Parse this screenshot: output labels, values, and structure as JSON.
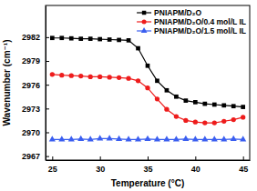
{
  "chart_data": {
    "type": "line",
    "x_label": "Temperature (°C)",
    "y_label": "Wavenumber (cm⁻¹)",
    "x": [
      25,
      26,
      27,
      28,
      29,
      30,
      31,
      32,
      33,
      34,
      35,
      36,
      37,
      38,
      39,
      40,
      41,
      42,
      43,
      44,
      45
    ],
    "series": [
      {
        "name": "PNIAPM/D₂O",
        "color": "#000000",
        "marker": "square",
        "values": [
          2981.9,
          2981.9,
          2981.85,
          2981.8,
          2981.8,
          2981.75,
          2981.7,
          2981.65,
          2981.6,
          2980.6,
          2978.4,
          2976.5,
          2975.3,
          2974.5,
          2974.0,
          2973.8,
          2973.6,
          2973.5,
          2973.4,
          2973.3,
          2973.2
        ]
      },
      {
        "name": "PNIAPM/D₂O/0.4 mol/L IL",
        "color": "#ee1c1c",
        "marker": "circle",
        "values": [
          2977.3,
          2977.2,
          2977.15,
          2977.1,
          2977.0,
          2977.0,
          2976.95,
          2976.9,
          2976.8,
          2976.5,
          2975.6,
          2974.2,
          2972.9,
          2972.0,
          2971.5,
          2971.3,
          2971.2,
          2971.2,
          2971.4,
          2971.6,
          2971.9
        ]
      },
      {
        "name": "PNIAPM/D₂O/1.5 mol/L IL",
        "color": "#3a5ef0",
        "marker": "triangle",
        "values": [
          2969.1,
          2969.1,
          2969.1,
          2969.15,
          2969.1,
          2969.2,
          2969.2,
          2969.15,
          2969.1,
          2969.1,
          2969.15,
          2969.1,
          2969.1,
          2969.1,
          2969.15,
          2969.1,
          2969.1,
          2969.1,
          2969.1,
          2969.15,
          2969.1
        ]
      }
    ],
    "xlim": [
      24.3,
      45.7
    ],
    "xticks": [
      25,
      30,
      35,
      40,
      45
    ],
    "ylim": [
      2966.5,
      2986
    ],
    "yticks": [
      2967,
      2970,
      2973,
      2976,
      2979,
      2982
    ],
    "legend": "upper right",
    "grid": false
  }
}
